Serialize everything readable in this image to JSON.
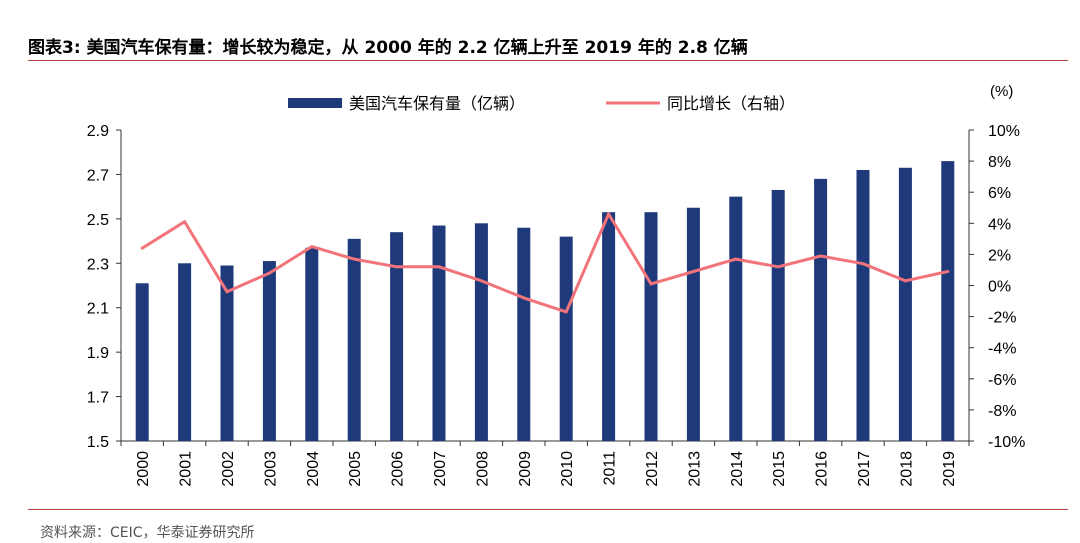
{
  "figure": {
    "label": "图表3:",
    "title": "美国汽车保有量：增长较为稳定，从 2000 年的 2.2 亿辆上升至 2019 年的 2.8 亿辆",
    "source": "资料来源：CEIC，华泰证券研究所"
  },
  "colors": {
    "bars": "#1f3a7a",
    "line": "#f2747a",
    "rule": "#b0413e"
  },
  "chart_data": {
    "type": "bar",
    "categories": [
      "2000",
      "2001",
      "2002",
      "2003",
      "2004",
      "2005",
      "2006",
      "2007",
      "2008",
      "2009",
      "2010",
      "2011",
      "2012",
      "2013",
      "2014",
      "2015",
      "2016",
      "2017",
      "2018",
      "2019"
    ],
    "series": [
      {
        "name": "美国汽车保有量（亿辆）",
        "type": "bar",
        "axis": "left",
        "values": [
          2.21,
          2.3,
          2.29,
          2.31,
          2.37,
          2.41,
          2.44,
          2.47,
          2.48,
          2.46,
          2.42,
          2.53,
          2.53,
          2.55,
          2.6,
          2.63,
          2.68,
          2.72,
          2.73,
          2.76
        ]
      },
      {
        "name": "同比增长（右轴）",
        "type": "line",
        "axis": "right",
        "values": [
          2.4,
          4.1,
          -0.4,
          0.8,
          2.5,
          1.7,
          1.2,
          1.2,
          0.3,
          -0.8,
          -1.7,
          4.6,
          0.1,
          0.9,
          1.7,
          1.2,
          1.9,
          1.4,
          0.3,
          0.9
        ]
      }
    ],
    "y_left": {
      "ylim": [
        1.5,
        2.9
      ],
      "ticks": [
        "2.9",
        "2.7",
        "2.5",
        "2.3",
        "2.1",
        "1.9",
        "1.7",
        "1.5"
      ]
    },
    "y_right": {
      "unit_label": "(%)",
      "ylim": [
        -10,
        10
      ],
      "ticks": [
        "10%",
        "8%",
        "6%",
        "4%",
        "2%",
        "0%",
        "-2%",
        "-4%",
        "-6%",
        "-8%",
        "-10%"
      ]
    },
    "legend_position": "top",
    "grid": false
  }
}
